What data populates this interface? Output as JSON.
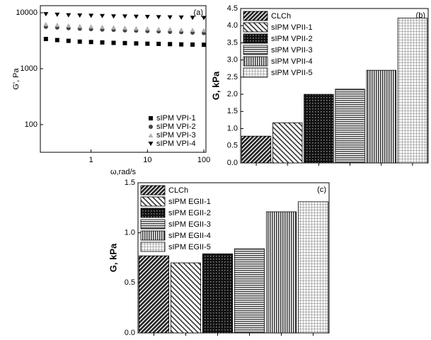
{
  "chart_data": [
    {
      "type": "scatter",
      "title": "(a)",
      "xlabel": "ω,rad/s",
      "ylabel": "G', Pa",
      "xscale": "log",
      "yscale": "log",
      "xlim": [
        0.126,
        109
      ],
      "ylim": [
        32,
        13400
      ],
      "xticks": [
        1,
        10,
        100
      ],
      "yticks": [
        100,
        1000,
        10000
      ],
      "legend": "lower right",
      "x": [
        0.158,
        0.251,
        0.398,
        0.631,
        1,
        1.58,
        2.51,
        3.98,
        6.31,
        10,
        15.8,
        25.1,
        39.8,
        63.1,
        100
      ],
      "series": [
        {
          "name": "sIPM VPI-1",
          "color": "#000000",
          "marker": "square",
          "values": [
            3400,
            3250,
            3150,
            3050,
            3000,
            2950,
            2900,
            2870,
            2830,
            2800,
            2780,
            2750,
            2720,
            2700,
            2680
          ]
        },
        {
          "name": "sIPM VPI-2",
          "color": "#444444",
          "marker": "circle",
          "values": [
            5600,
            5450,
            5300,
            5200,
            5100,
            5000,
            4950,
            4850,
            4800,
            4700,
            4650,
            4550,
            4500,
            4420,
            4350
          ]
        },
        {
          "name": "sIPM VPI-3",
          "color": "#b0b0b0",
          "marker": "triangle-up",
          "values": [
            6300,
            6100,
            5950,
            5800,
            5700,
            5600,
            5500,
            5400,
            5300,
            5250,
            5150,
            5100,
            5000,
            4950,
            4900
          ]
        },
        {
          "name": "sIPM VPI-4",
          "color": "#000000",
          "marker": "triangle-down",
          "values": [
            9400,
            9200,
            9000,
            8900,
            8800,
            8700,
            8600,
            8550,
            8450,
            8400,
            8300,
            8250,
            8200,
            8100,
            8050
          ]
        }
      ]
    },
    {
      "type": "bar",
      "title": "(b)",
      "ylabel": "G, kPa",
      "legend": "upper left",
      "categories": [
        "CLCh",
        "sIPM VPII-1",
        "sIPM VPII-2",
        "sIPM VPII-3",
        "sIPM VPII-4",
        "sIPM VPII-5"
      ],
      "values": [
        0.78,
        1.17,
        2.0,
        2.15,
        2.7,
        4.22
      ],
      "ylim": [
        0,
        4.5
      ],
      "yticks": [
        {
          "value": 0,
          "label": "0.0"
        },
        0.5,
        {
          "value": 1,
          "label": "1.0"
        },
        1.5,
        {
          "value": 2,
          "label": "2.0"
        },
        2.5,
        {
          "value": 3,
          "label": "3.0"
        },
        3.5,
        {
          "value": 4,
          "label": "4.0"
        },
        4.5
      ]
    },
    {
      "type": "bar",
      "title": "(c)",
      "ylabel": "G, kPa",
      "legend": "upper left",
      "categories": [
        "CLCh",
        "sIPM EGII-1",
        "sIPM EGII-2",
        "sIPM EGII-3",
        "sIPM EGII-4",
        "sIPM EGII-5"
      ],
      "values": [
        0.77,
        0.7,
        0.79,
        0.84,
        1.21,
        1.31
      ],
      "ylim": [
        0,
        1.5
      ],
      "yticks": [
        {
          "value": 0,
          "label": "0.0"
        },
        0.5,
        {
          "value": 1,
          "label": "1.0"
        },
        1.5
      ]
    }
  ]
}
